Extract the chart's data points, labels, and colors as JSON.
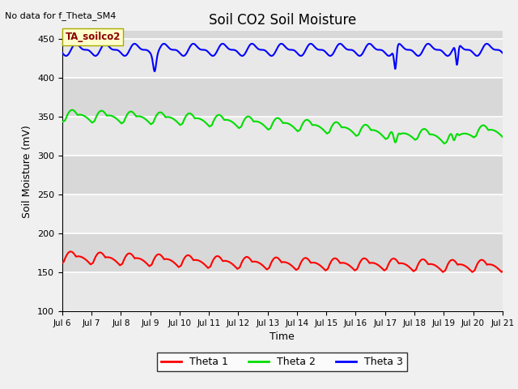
{
  "title": "Soil CO2 Soil Moisture",
  "xlabel": "Time",
  "ylabel": "Soil Moisture (mV)",
  "top_left_text": "No data for f_Theta_SM4",
  "annotation_text": "TA_soilco2",
  "ylim": [
    100,
    460
  ],
  "yticks": [
    100,
    150,
    200,
    250,
    300,
    350,
    400,
    450
  ],
  "x_start_day": 6,
  "x_end_day": 21,
  "x_tick_days": [
    6,
    7,
    8,
    9,
    10,
    11,
    12,
    13,
    14,
    15,
    16,
    17,
    18,
    19,
    20,
    21
  ],
  "background_color": "#f0f0f0",
  "axes_bg_color": "#d8d8d8",
  "plot_band_color": "#e8e8e8",
  "theta1_color": "#ff0000",
  "theta2_color": "#00dd00",
  "theta3_color": "#0000ff",
  "legend_labels": [
    "Theta 1",
    "Theta 2",
    "Theta 3"
  ],
  "line_width": 1.5,
  "grid_color": "#ffffff"
}
